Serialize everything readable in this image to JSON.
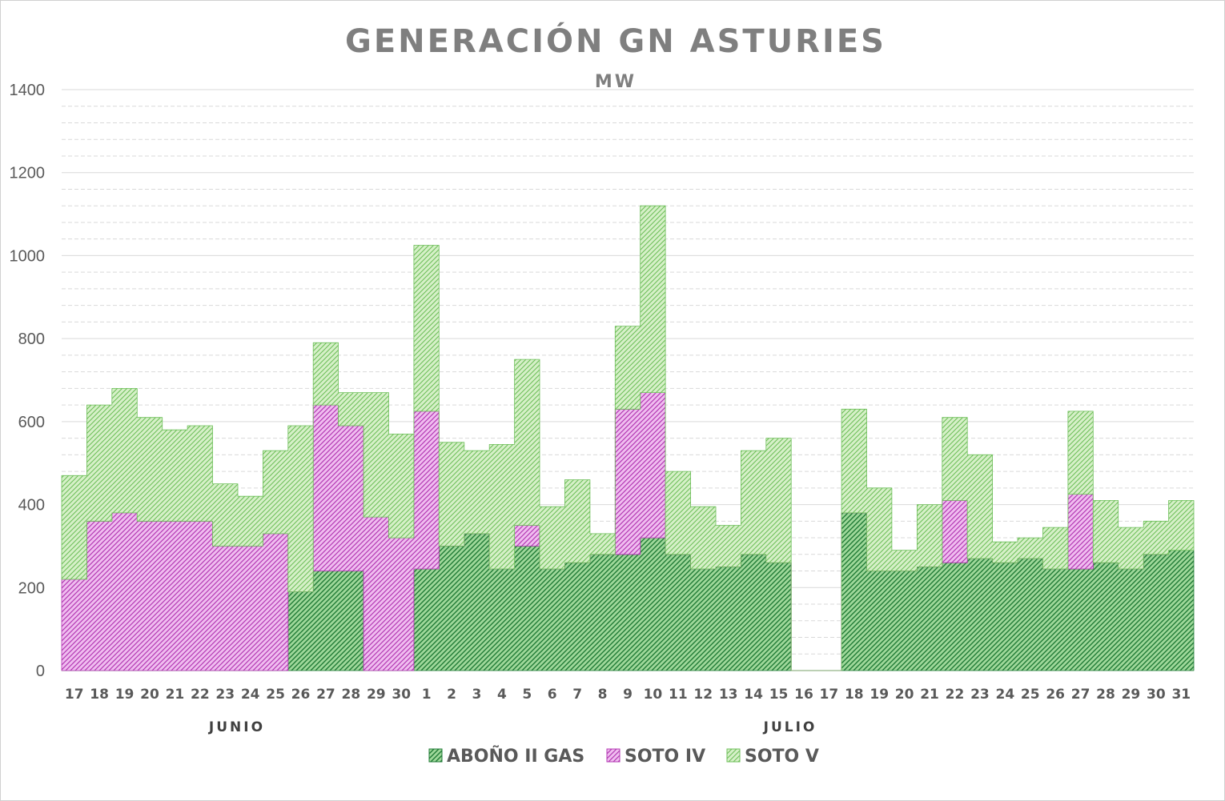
{
  "chart_data": {
    "type": "area",
    "stacked": true,
    "title": "GENERACIÓN GN ASTURIES",
    "subtitle": "MW",
    "ylim": [
      0,
      1400
    ],
    "yticks": [
      "0",
      "200",
      "400",
      "600",
      "800",
      "1000",
      "1200",
      "1400"
    ],
    "grid": "major solid, minor dashed every 40",
    "legend_position": "bottom",
    "month_labels": [
      "JUNIO",
      "JULIO"
    ],
    "categories": [
      "17",
      "18",
      "19",
      "20",
      "21",
      "22",
      "23",
      "24",
      "25",
      "26",
      "27",
      "28",
      "29",
      "30",
      "1",
      "2",
      "3",
      "4",
      "5",
      "6",
      "7",
      "8",
      "9",
      "10",
      "11",
      "12",
      "13",
      "14",
      "15",
      "16",
      "17",
      "18",
      "19",
      "20",
      "21",
      "22",
      "23",
      "24",
      "25",
      "26",
      "27",
      "28",
      "29",
      "30",
      "31"
    ],
    "series": [
      {
        "name": "ABOÑO II GAS",
        "color": "#2e8b45",
        "values": [
          0,
          0,
          0,
          0,
          0,
          0,
          0,
          0,
          0,
          190,
          240,
          240,
          0,
          0,
          245,
          300,
          330,
          245,
          300,
          245,
          260,
          280,
          280,
          320,
          280,
          245,
          250,
          280,
          260,
          0,
          0,
          380,
          240,
          240,
          250,
          260,
          270,
          260,
          270,
          245,
          245,
          260,
          245,
          280,
          290
        ]
      },
      {
        "name": "SOTO IV",
        "color": "#cc4fcc",
        "values": [
          220,
          360,
          380,
          360,
          360,
          360,
          300,
          300,
          330,
          0,
          400,
          350,
          370,
          320,
          380,
          0,
          0,
          0,
          50,
          0,
          0,
          0,
          350,
          350,
          0,
          0,
          0,
          0,
          0,
          0,
          0,
          0,
          0,
          0,
          0,
          150,
          0,
          0,
          0,
          0,
          180,
          0,
          0,
          0,
          0
        ]
      },
      {
        "name": "SOTO V",
        "color": "#8fd07a",
        "values": [
          250,
          280,
          300,
          250,
          220,
          230,
          150,
          120,
          200,
          400,
          150,
          80,
          300,
          250,
          400,
          250,
          200,
          300,
          400,
          150,
          200,
          50,
          200,
          450,
          200,
          150,
          100,
          250,
          300,
          0,
          0,
          250,
          200,
          50,
          150,
          200,
          250,
          50,
          50,
          100,
          200,
          150,
          100,
          80,
          120
        ]
      }
    ]
  },
  "legend": [
    {
      "label": "ABOÑO II GAS"
    },
    {
      "label": "SOTO IV"
    },
    {
      "label": "SOTO V"
    }
  ]
}
